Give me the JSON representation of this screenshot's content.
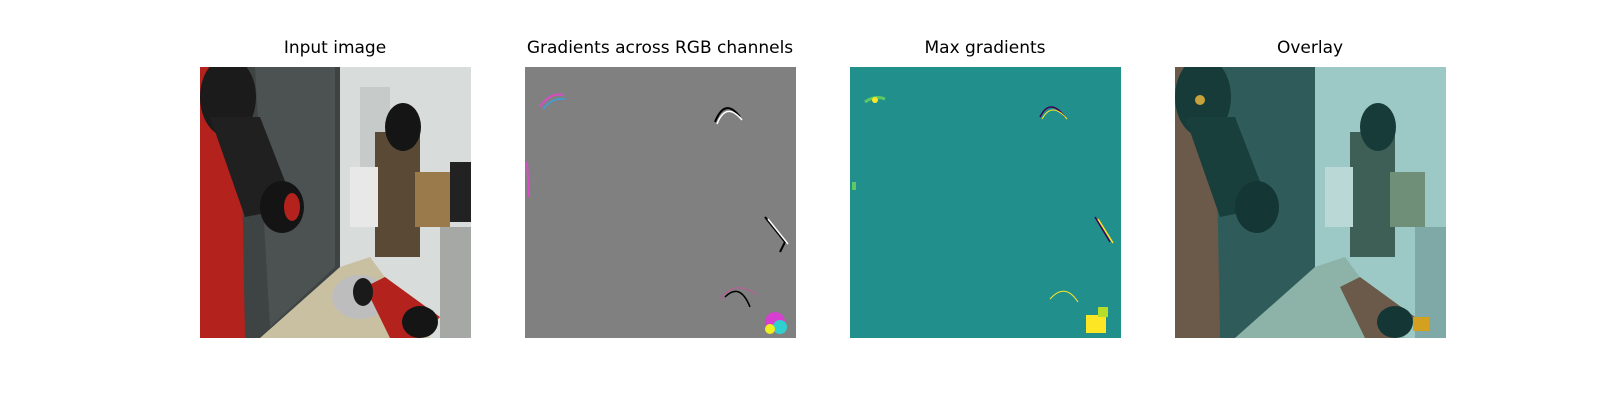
{
  "panels": [
    {
      "title": "Input image",
      "icon": "photo-icon"
    },
    {
      "title": "Gradients across RGB channels",
      "icon": "gradient-map-icon"
    },
    {
      "title": "Max gradients",
      "icon": "heatmap-icon"
    },
    {
      "title": "Overlay",
      "icon": "overlay-icon"
    }
  ],
  "colors": {
    "background": "#ffffff",
    "gradient_gray": "#808080",
    "viridis_teal": "#21908d",
    "viridis_yellow": "#fde725",
    "robot_red": "#b3221c"
  }
}
